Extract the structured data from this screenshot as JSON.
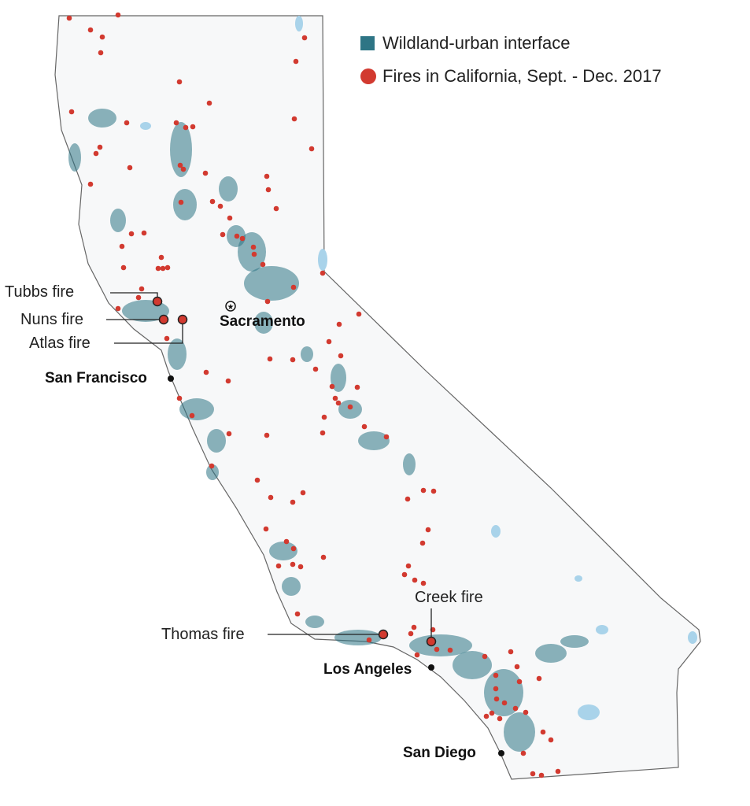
{
  "colors": {
    "wui": "#2e7585",
    "fire": "#d23a30",
    "land": "#f7f8f9",
    "water": "#a9d3ea",
    "border": "#555555"
  },
  "legend": {
    "wui_label": "Wildland-urban interface",
    "fires_label": "Fires in California, Sept. - Dec. 2017"
  },
  "fires": {
    "tubbs": "Tubbs fire",
    "nuns": "Nuns fire",
    "atlas": "Atlas fire",
    "thomas": "Thomas fire",
    "creek": "Creek fire"
  },
  "cities": {
    "sacramento": "Sacramento",
    "san_francisco": "San Francisco",
    "los_angeles": "Los Angeles",
    "san_diego": "San Diego"
  }
}
